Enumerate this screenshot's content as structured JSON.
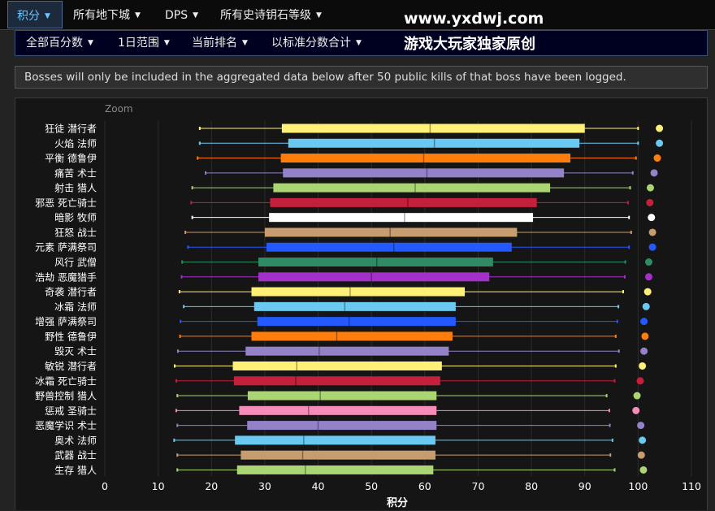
{
  "nav": {
    "items": [
      {
        "label": "积分",
        "active": true
      },
      {
        "label": "所有地下城",
        "active": false
      },
      {
        "label": "DPS",
        "active": false
      },
      {
        "label": "所有史诗钥石等级",
        "active": false
      }
    ]
  },
  "subnav": {
    "items": [
      {
        "label": "全部百分数"
      },
      {
        "label": "1日范围"
      },
      {
        "label": "当前排名"
      },
      {
        "label": "以标准分数合计"
      }
    ]
  },
  "watermark": {
    "url": "www.yxdwj.com",
    "text": "游戏大玩家独家原创"
  },
  "notice": "Bosses will only be included in the aggregated data below after 50 public kills of that boss have been logged.",
  "chart": {
    "zoom_label": "Zoom"
  },
  "colors": {
    "panel_bg": "#151515",
    "page_bg": "#232323",
    "accent": "#6ec6ff"
  },
  "chart_data": {
    "type": "boxplot",
    "xlabel": "积分",
    "xlim": [
      0,
      110
    ],
    "xticks": [
      0,
      10,
      20,
      30,
      40,
      50,
      60,
      70,
      80,
      90,
      100,
      110
    ],
    "grid": true,
    "series": [
      {
        "name": "狂徒 潜行者",
        "color": "#fff176",
        "min": 17.8,
        "q1": 33.2,
        "median": 61.0,
        "q3": 90.0,
        "max": 100.0,
        "point": 104.0
      },
      {
        "name": "火焰 法师",
        "color": "#69c9f0",
        "min": 17.8,
        "q1": 34.4,
        "median": 61.8,
        "q3": 89.0,
        "max": 100.0,
        "point": 104.0
      },
      {
        "name": "平衡 德鲁伊",
        "color": "#ff7d0a",
        "min": 17.4,
        "q1": 33.0,
        "median": 59.8,
        "q3": 87.3,
        "max": 99.6,
        "point": 103.6
      },
      {
        "name": "痛苦 术士",
        "color": "#9482c9",
        "min": 18.9,
        "q1": 33.4,
        "median": 60.4,
        "q3": 86.1,
        "max": 99.0,
        "point": 103.0
      },
      {
        "name": "射击 猎人",
        "color": "#abd473",
        "min": 16.4,
        "q1": 31.6,
        "median": 58.2,
        "q3": 83.5,
        "max": 98.5,
        "point": 102.3
      },
      {
        "name": "邪恶 死亡骑士",
        "color": "#c41f3b",
        "min": 16.2,
        "q1": 31.0,
        "median": 56.8,
        "q3": 81.0,
        "max": 98.1,
        "point": 102.2
      },
      {
        "name": "暗影 牧师",
        "color": "#ffffff",
        "min": 16.4,
        "q1": 30.8,
        "median": 56.2,
        "q3": 80.3,
        "max": 98.3,
        "point": 102.5
      },
      {
        "name": "狂怒 战士",
        "color": "#c79c6e",
        "min": 15.1,
        "q1": 30.0,
        "median": 53.5,
        "q3": 77.3,
        "max": 98.7,
        "point": 102.7
      },
      {
        "name": "元素 萨满祭司",
        "color": "#2359ff",
        "min": 15.6,
        "q1": 30.3,
        "median": 54.2,
        "q3": 76.3,
        "max": 98.3,
        "point": 102.7
      },
      {
        "name": "风行 武僧",
        "color": "#2e8b63",
        "min": 14.5,
        "q1": 28.8,
        "median": 51.0,
        "q3": 72.8,
        "max": 97.6,
        "point": 102.0
      },
      {
        "name": "浩劫 恶魔猎手",
        "color": "#a330c9",
        "min": 14.4,
        "q1": 28.8,
        "median": 50.0,
        "q3": 72.1,
        "max": 97.5,
        "point": 102.0
      },
      {
        "name": "奇袭 潜行者",
        "color": "#fff176",
        "min": 14.0,
        "q1": 27.5,
        "median": 46.0,
        "q3": 67.5,
        "max": 97.2,
        "point": 101.8
      },
      {
        "name": "冰霜 法师",
        "color": "#69c9f0",
        "min": 14.8,
        "q1": 28.0,
        "median": 45.0,
        "q3": 65.8,
        "max": 96.3,
        "point": 101.5
      },
      {
        "name": "增强 萨满祭司",
        "color": "#2359ff",
        "min": 14.2,
        "q1": 28.6,
        "median": 45.8,
        "q3": 65.8,
        "max": 96.1,
        "point": 101.1
      },
      {
        "name": "野性 德鲁伊",
        "color": "#ff7d0a",
        "min": 14.1,
        "q1": 27.5,
        "median": 43.5,
        "q3": 65.2,
        "max": 95.8,
        "point": 101.3
      },
      {
        "name": "毁灭 术士",
        "color": "#9482c9",
        "min": 13.7,
        "q1": 26.4,
        "median": 40.2,
        "q3": 64.5,
        "max": 96.4,
        "point": 101.1
      },
      {
        "name": "敏锐 潜行者",
        "color": "#fff176",
        "min": 13.1,
        "q1": 24.0,
        "median": 36.0,
        "q3": 63.2,
        "max": 95.8,
        "point": 100.8
      },
      {
        "name": "冰霜 死亡骑士",
        "color": "#c41f3b",
        "min": 13.4,
        "q1": 24.2,
        "median": 35.8,
        "q3": 62.9,
        "max": 95.6,
        "point": 100.4
      },
      {
        "name": "野兽控制 猎人",
        "color": "#abd473",
        "min": 13.6,
        "q1": 26.8,
        "median": 40.4,
        "q3": 62.2,
        "max": 94.1,
        "point": 99.8
      },
      {
        "name": "惩戒 圣骑士",
        "color": "#f58cba",
        "min": 13.4,
        "q1": 25.2,
        "median": 38.2,
        "q3": 62.2,
        "max": 94.6,
        "point": 99.6
      },
      {
        "name": "恶魔学识 术士",
        "color": "#9482c9",
        "min": 13.6,
        "q1": 26.7,
        "median": 40.0,
        "q3": 62.2,
        "max": 94.7,
        "point": 100.5
      },
      {
        "name": "奥术 法师",
        "color": "#69c9f0",
        "min": 13.0,
        "q1": 24.4,
        "median": 37.3,
        "q3": 62.0,
        "max": 95.2,
        "point": 100.8
      },
      {
        "name": "武器 战士",
        "color": "#c79c6e",
        "min": 13.6,
        "q1": 25.5,
        "median": 37.1,
        "q3": 62.0,
        "max": 94.8,
        "point": 100.6
      },
      {
        "name": "生存 猎人",
        "color": "#abd473",
        "min": 13.6,
        "q1": 24.8,
        "median": 37.6,
        "q3": 61.6,
        "max": 95.6,
        "point": 101.0
      }
    ]
  }
}
